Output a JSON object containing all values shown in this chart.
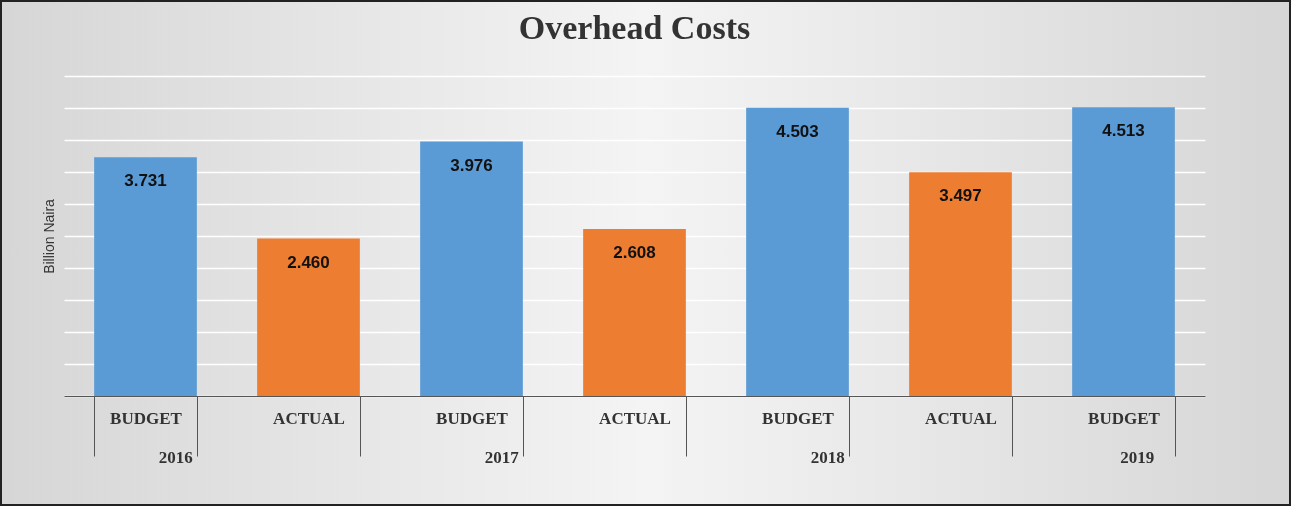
{
  "chart_data": {
    "type": "bar",
    "title": "Overhead Costs",
    "ylabel": "Billion Naira",
    "categories": [
      "BUDGET",
      "ACTUAL",
      "BUDGET",
      "ACTUAL",
      "BUDGET",
      "ACTUAL",
      "BUDGET"
    ],
    "values": [
      3.731,
      2.46,
      3.976,
      2.608,
      4.503,
      3.497,
      4.513
    ],
    "colors": [
      "#5b9bd5",
      "#ed7d31",
      "#5b9bd5",
      "#ed7d31",
      "#5b9bd5",
      "#ed7d31",
      "#5b9bd5"
    ],
    "annotations": [
      "2016",
      "2017",
      "2018",
      "2019"
    ],
    "value_labels": [
      "3.731",
      "2.460",
      "3.976",
      "2.608",
      "4.503",
      "3.497",
      "4.513"
    ],
    "grid": "y",
    "tick_labels": "x"
  }
}
